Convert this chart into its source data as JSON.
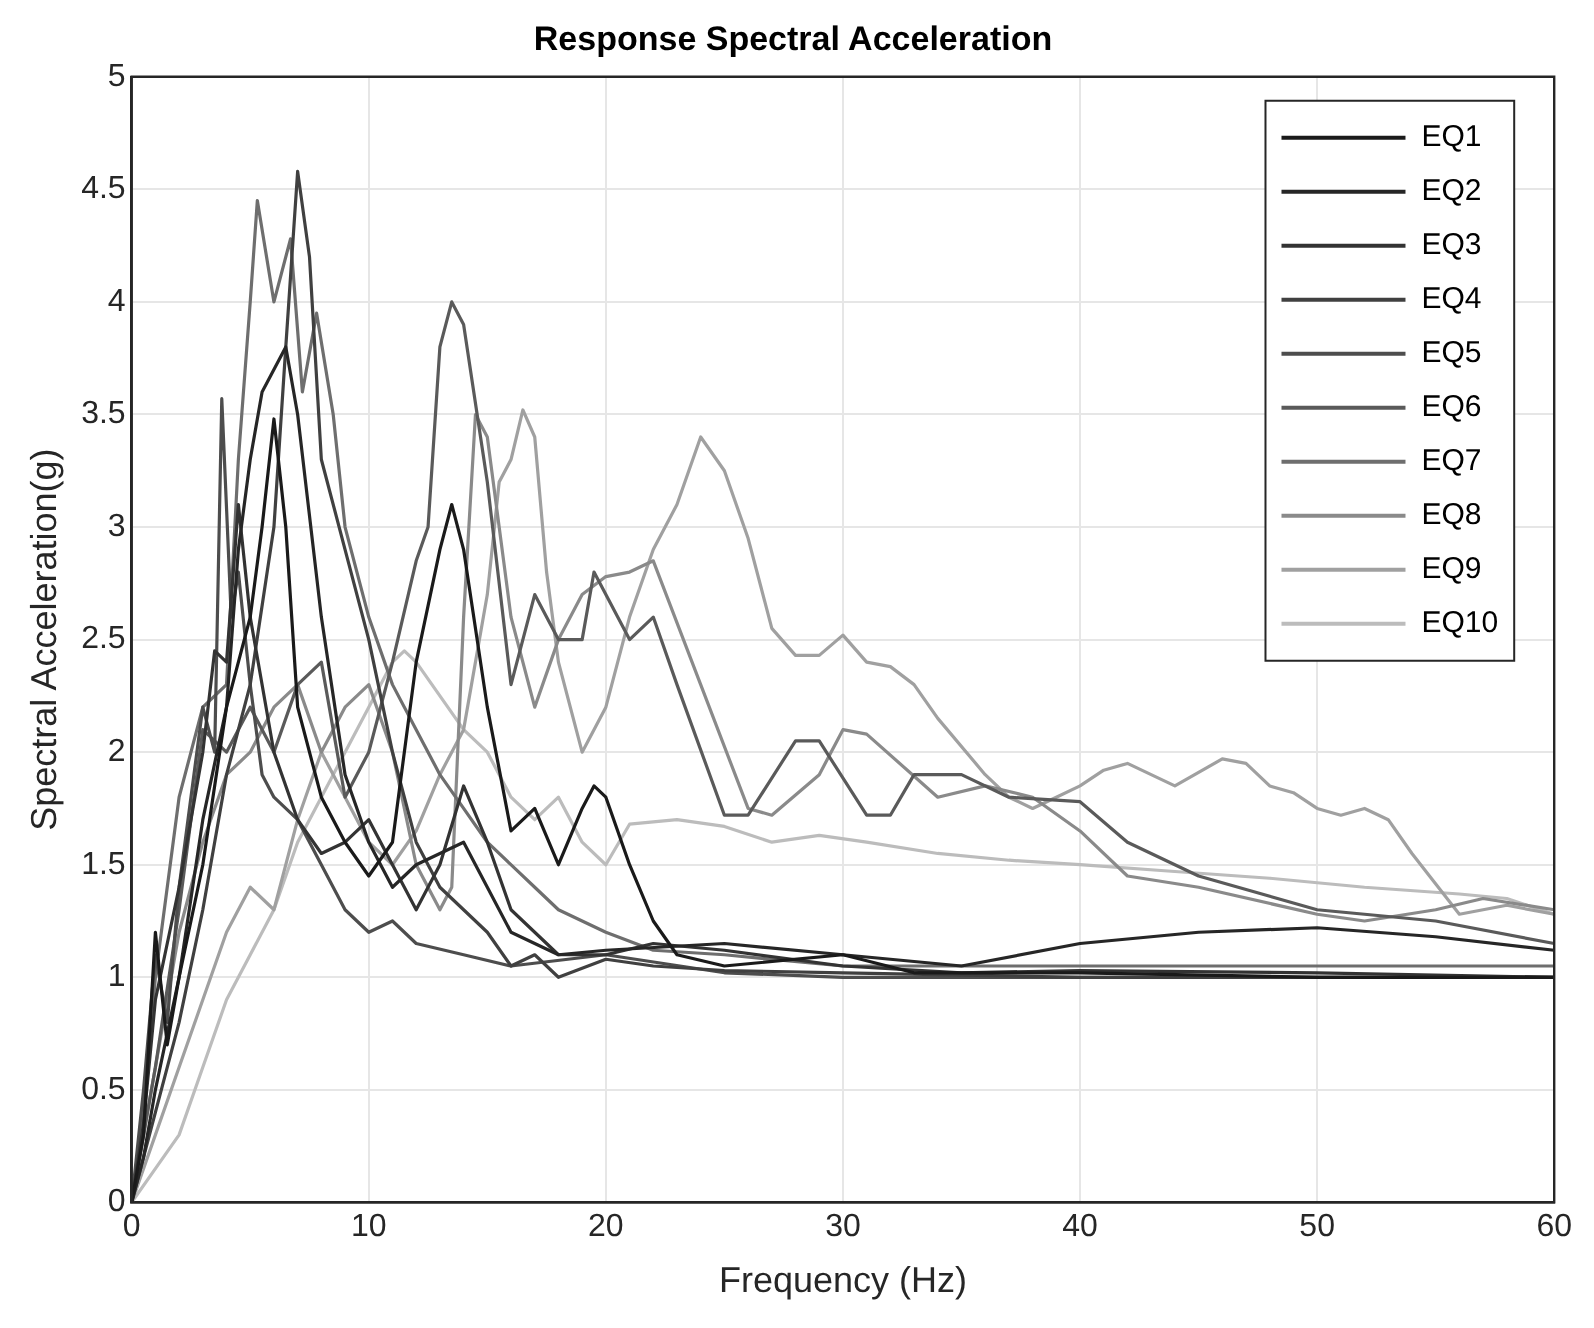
{
  "chart_data": {
    "type": "line",
    "title": "Response Spectral Acceleration",
    "xlabel": "Frequency (Hz)",
    "ylabel": "Spectral Acceleration(g)",
    "xlim": [
      0,
      60
    ],
    "xticks": [
      0,
      10,
      20,
      30,
      40,
      50,
      60
    ],
    "ylim": [
      0,
      5
    ],
    "yticks": [
      0,
      0.5,
      1,
      1.5,
      2,
      2.5,
      3,
      3.5,
      4,
      4.5,
      5
    ],
    "grid": true,
    "legend": "top right",
    "marker": "none",
    "line_style": "solid",
    "series": [
      {
        "name": "EQ1",
        "color": "#1a1a1a",
        "x": [
          0,
          0.5,
          1,
          1.5,
          2,
          3,
          4,
          5,
          5.5,
          6,
          6.5,
          7,
          8,
          9,
          10,
          11,
          12,
          13,
          13.5,
          14,
          15,
          16,
          17,
          18,
          19,
          19.5,
          20,
          21,
          22,
          23,
          25,
          30,
          33,
          40,
          50,
          60
        ],
        "values": [
          0,
          0.3,
          1.2,
          0.7,
          1.0,
          1.5,
          2.2,
          2.6,
          3.0,
          3.48,
          3.0,
          2.2,
          1.8,
          1.6,
          1.45,
          1.6,
          2.4,
          2.9,
          3.1,
          2.9,
          2.2,
          1.65,
          1.75,
          1.5,
          1.75,
          1.85,
          1.8,
          1.5,
          1.25,
          1.1,
          1.05,
          1.1,
          1.02,
          1.02,
          1.0,
          1.0
        ]
      },
      {
        "name": "EQ2",
        "color": "#262626",
        "x": [
          0,
          0.5,
          1,
          2,
          3,
          4,
          4.5,
          5,
          5.5,
          6.5,
          7,
          8,
          9,
          10,
          11,
          12,
          13,
          14,
          15,
          16,
          18,
          20,
          25,
          30,
          35,
          40,
          45,
          50,
          55,
          60
        ],
        "values": [
          0,
          0.2,
          0.5,
          1.0,
          1.7,
          2.2,
          2.9,
          3.3,
          3.6,
          3.8,
          3.5,
          2.6,
          1.9,
          1.6,
          1.4,
          1.5,
          1.55,
          1.6,
          1.4,
          1.2,
          1.1,
          1.12,
          1.15,
          1.1,
          1.05,
          1.15,
          1.2,
          1.22,
          1.18,
          1.12
        ]
      },
      {
        "name": "EQ3",
        "color": "#333333",
        "x": [
          0,
          0.5,
          1,
          2,
          3,
          3.5,
          4,
          4.5,
          5,
          6,
          7,
          8,
          9,
          10,
          11,
          12,
          13,
          14,
          15,
          16,
          17,
          18,
          20,
          22,
          25,
          30,
          35,
          40,
          50,
          60
        ],
        "values": [
          0,
          0.35,
          0.9,
          1.4,
          2.0,
          2.45,
          2.4,
          3.1,
          2.6,
          2.0,
          1.7,
          1.55,
          1.6,
          1.7,
          1.5,
          1.3,
          1.5,
          1.85,
          1.6,
          1.3,
          1.2,
          1.1,
          1.1,
          1.15,
          1.12,
          1.05,
          1.02,
          1.03,
          1.02,
          1.0
        ]
      },
      {
        "name": "EQ4",
        "color": "#404040",
        "x": [
          0,
          1,
          2,
          3,
          4,
          5,
          6,
          6.5,
          7,
          7.5,
          8,
          9,
          10,
          11,
          12,
          13,
          14,
          15,
          16,
          17,
          18,
          20,
          22,
          25,
          30,
          40,
          50,
          60
        ],
        "values": [
          0,
          0.4,
          0.8,
          1.3,
          1.9,
          2.3,
          3.0,
          3.8,
          4.58,
          4.2,
          3.3,
          2.9,
          2.5,
          2.0,
          1.6,
          1.4,
          1.3,
          1.2,
          1.05,
          1.1,
          1.0,
          1.08,
          1.05,
          1.03,
          1.02,
          1.0,
          1.0,
          1.0
        ]
      },
      {
        "name": "EQ5",
        "color": "#4d4d4d",
        "x": [
          0,
          0.5,
          1,
          1.5,
          2,
          3,
          3.5,
          3.8,
          4.2,
          4.5,
          5,
          5.5,
          6,
          7,
          8,
          9,
          10,
          11,
          12,
          14,
          16,
          20,
          25,
          30,
          40,
          50,
          60
        ],
        "values": [
          0,
          0.5,
          1.1,
          0.8,
          1.4,
          2.2,
          2.0,
          3.57,
          2.6,
          2.8,
          2.3,
          1.9,
          1.8,
          1.7,
          1.5,
          1.3,
          1.2,
          1.25,
          1.15,
          1.1,
          1.05,
          1.1,
          1.02,
          1.0,
          1.0,
          1.0,
          1.0
        ]
      },
      {
        "name": "EQ6",
        "color": "#5a5a5a",
        "x": [
          0,
          1,
          2,
          3,
          4,
          5,
          6,
          7,
          8,
          9,
          10,
          11,
          12,
          12.5,
          13,
          13.5,
          14,
          15,
          16,
          17,
          18,
          19,
          19.5,
          21,
          22,
          23,
          25,
          26,
          28,
          29,
          31,
          32,
          33,
          35,
          37,
          40,
          42,
          45,
          50,
          55,
          60
        ],
        "values": [
          0,
          0.6,
          1.3,
          2.1,
          2.0,
          2.2,
          2.0,
          2.3,
          2.4,
          1.8,
          2.0,
          2.4,
          2.85,
          3.0,
          3.8,
          4.0,
          3.9,
          3.2,
          2.3,
          2.7,
          2.5,
          2.5,
          2.8,
          2.5,
          2.6,
          2.3,
          1.72,
          1.72,
          2.05,
          2.05,
          1.72,
          1.72,
          1.9,
          1.9,
          1.8,
          1.78,
          1.6,
          1.45,
          1.3,
          1.25,
          1.15
        ]
      },
      {
        "name": "EQ7",
        "color": "#6e6e6e",
        "x": [
          0,
          0.5,
          1,
          2,
          3,
          4,
          4.5,
          5,
          5.3,
          6,
          6.7,
          7.2,
          7.8,
          8.5,
          9,
          10,
          11,
          12,
          13,
          14,
          15,
          17,
          18,
          20,
          22,
          25,
          30,
          40,
          50,
          60
        ],
        "values": [
          0,
          0.4,
          1.0,
          1.8,
          2.2,
          2.3,
          3.3,
          4.0,
          4.45,
          4.0,
          4.28,
          3.6,
          3.95,
          3.5,
          3.0,
          2.6,
          2.3,
          2.1,
          1.9,
          1.75,
          1.6,
          1.4,
          1.3,
          1.2,
          1.12,
          1.1,
          1.05,
          1.05,
          1.05,
          1.05
        ]
      },
      {
        "name": "EQ8",
        "color": "#8a8a8a",
        "x": [
          0,
          1,
          2,
          3,
          4,
          5,
          6,
          7,
          8,
          9,
          10,
          11,
          12,
          13,
          13.5,
          14,
          14.5,
          15,
          16,
          17,
          18,
          19,
          20,
          21,
          22,
          24,
          26,
          27,
          29,
          30,
          31,
          34,
          36,
          38,
          40,
          42,
          45,
          50,
          52,
          55,
          57,
          60
        ],
        "values": [
          0,
          0.6,
          1.2,
          1.6,
          1.9,
          2.0,
          2.2,
          2.3,
          2.0,
          2.2,
          2.3,
          2.0,
          1.5,
          1.3,
          1.4,
          2.6,
          3.5,
          3.4,
          2.6,
          2.2,
          2.5,
          2.7,
          2.78,
          2.8,
          2.85,
          2.3,
          1.75,
          1.72,
          1.9,
          2.1,
          2.08,
          1.8,
          1.85,
          1.8,
          1.65,
          1.45,
          1.4,
          1.28,
          1.25,
          1.3,
          1.35,
          1.3
        ]
      },
      {
        "name": "EQ9",
        "color": "#a0a0a0",
        "x": [
          0,
          1,
          2,
          3,
          4,
          5,
          6,
          7,
          8,
          9,
          10,
          11,
          12,
          13,
          14,
          15,
          15.5,
          16,
          16.5,
          17,
          17.5,
          18,
          19,
          20,
          21,
          22,
          23,
          24,
          25,
          26,
          27,
          28,
          29,
          30,
          31,
          32,
          33,
          34,
          36,
          37,
          38,
          39,
          40,
          41,
          42,
          43,
          44,
          46,
          47,
          48,
          49,
          50,
          51,
          52,
          53,
          54,
          56,
          58,
          60
        ],
        "values": [
          0,
          0.3,
          0.6,
          0.9,
          1.2,
          1.4,
          1.3,
          1.7,
          2.0,
          1.8,
          1.6,
          1.5,
          1.65,
          1.9,
          2.1,
          2.7,
          3.2,
          3.3,
          3.52,
          3.4,
          2.8,
          2.4,
          2.0,
          2.2,
          2.6,
          2.9,
          3.1,
          3.4,
          3.25,
          2.95,
          2.55,
          2.43,
          2.43,
          2.52,
          2.4,
          2.38,
          2.3,
          2.15,
          1.9,
          1.8,
          1.75,
          1.8,
          1.85,
          1.92,
          1.95,
          1.9,
          1.85,
          1.97,
          1.95,
          1.85,
          1.82,
          1.75,
          1.72,
          1.75,
          1.7,
          1.55,
          1.28,
          1.32,
          1.28
        ]
      },
      {
        "name": "EQ10",
        "color": "#bcbcbc",
        "x": [
          0,
          1,
          2,
          3,
          4,
          5,
          6,
          7,
          8,
          9,
          10,
          11,
          11.5,
          12,
          13,
          14,
          15,
          16,
          17,
          18,
          19,
          20,
          21,
          23,
          25,
          27,
          29,
          31,
          34,
          37,
          40,
          44,
          48,
          52,
          56,
          58,
          60
        ],
        "values": [
          0,
          0.15,
          0.3,
          0.6,
          0.9,
          1.1,
          1.3,
          1.6,
          1.8,
          2.0,
          2.2,
          2.4,
          2.45,
          2.4,
          2.25,
          2.1,
          2.0,
          1.8,
          1.7,
          1.8,
          1.6,
          1.5,
          1.68,
          1.7,
          1.67,
          1.6,
          1.63,
          1.6,
          1.55,
          1.52,
          1.5,
          1.47,
          1.44,
          1.4,
          1.37,
          1.35,
          1.28
        ]
      }
    ]
  }
}
